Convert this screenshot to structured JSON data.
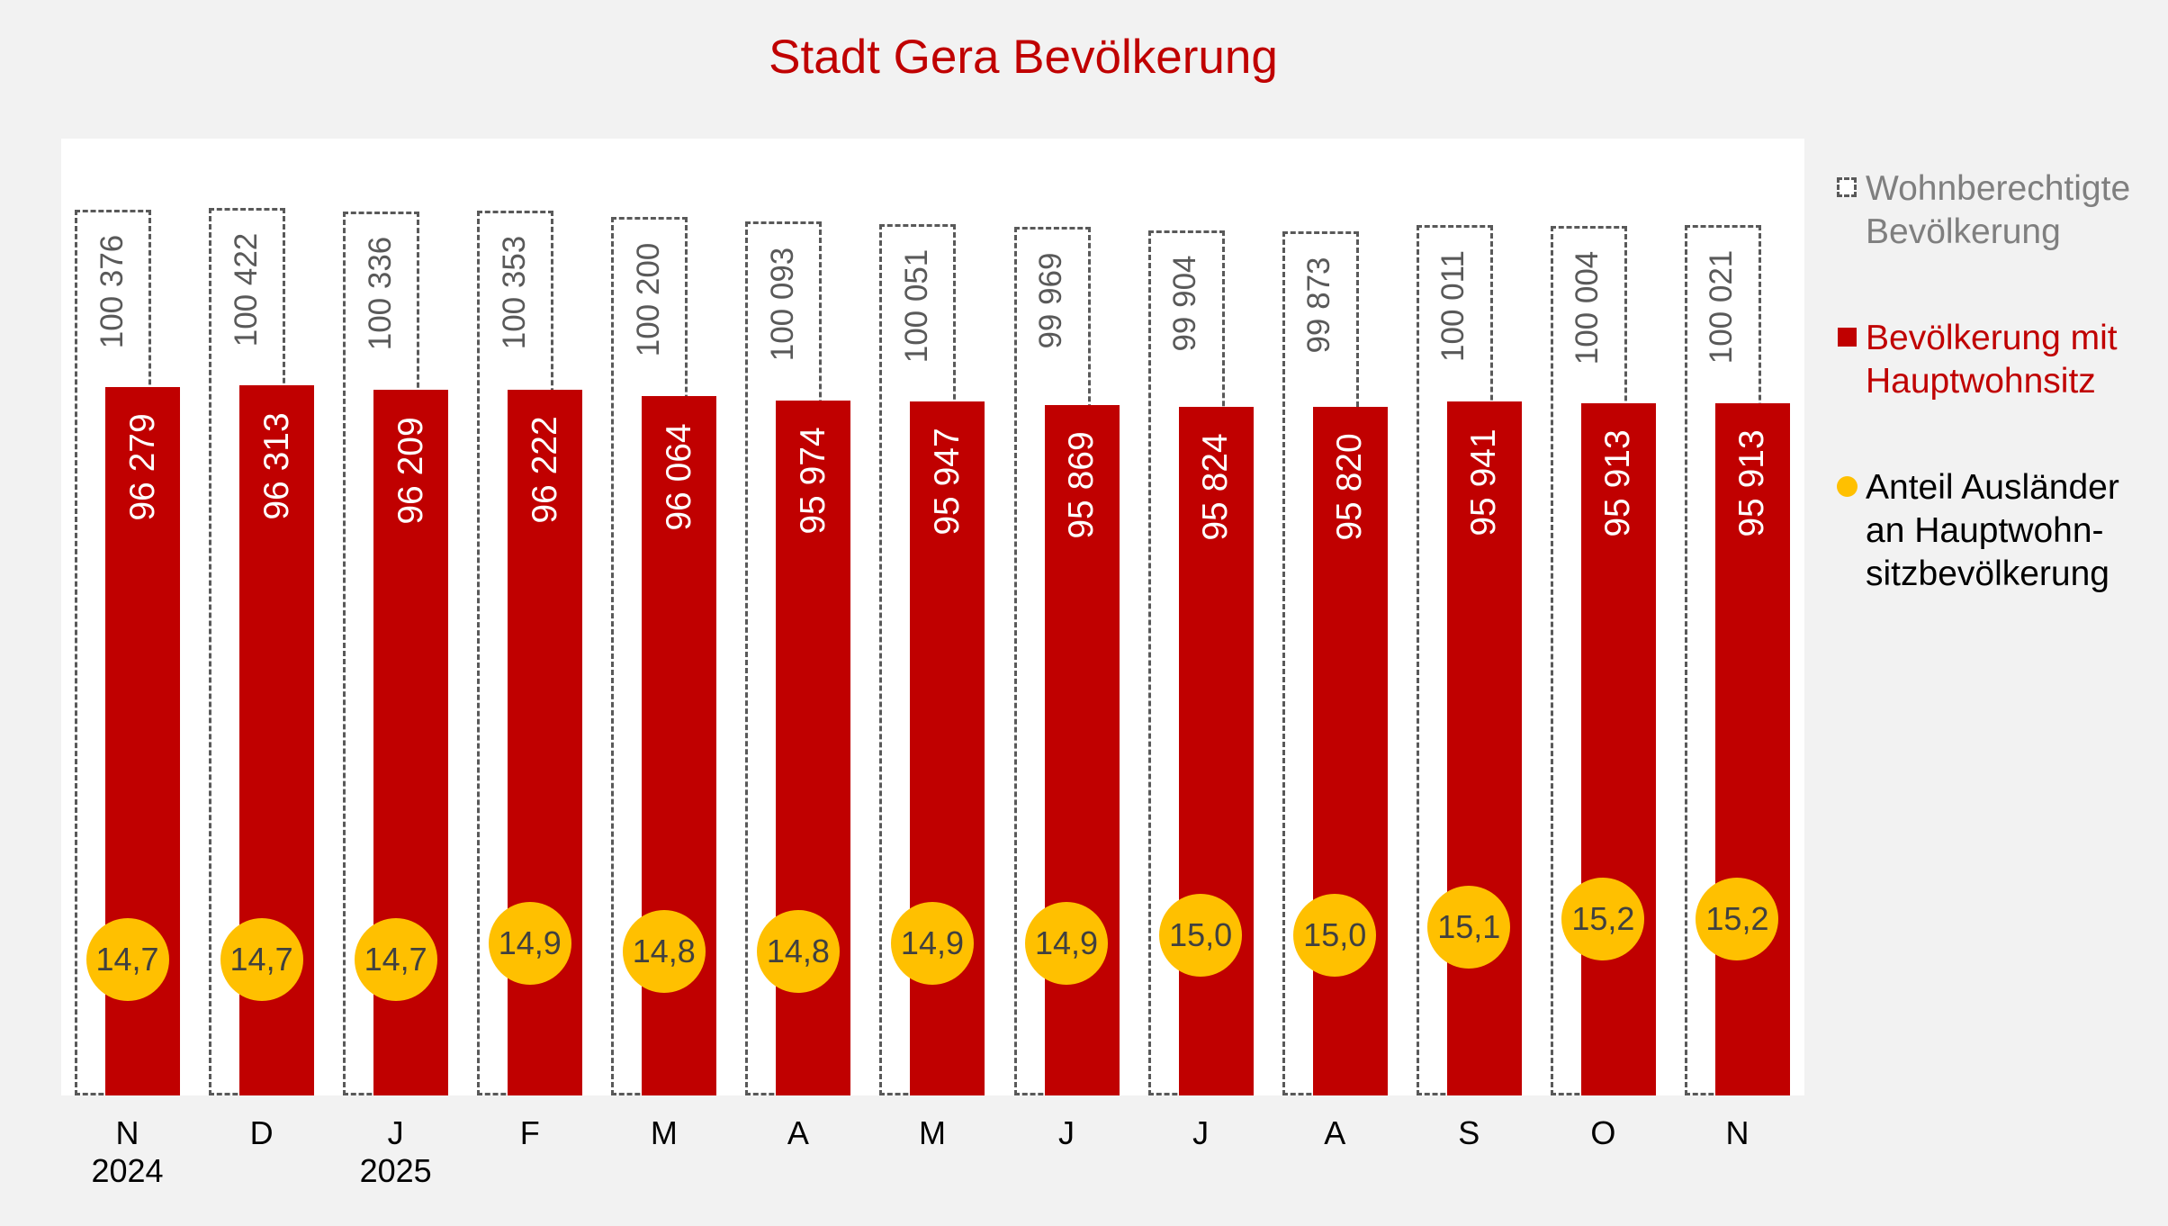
{
  "title": "Stadt Gera Bevölkerung",
  "legend": {
    "items": [
      {
        "key": "wohnberechtigt",
        "lines": [
          "Wohnberechtigte",
          "Bevölkerung"
        ],
        "color": "#7f7f7f",
        "icon": "dashed-square"
      },
      {
        "key": "hauptwohnsitz",
        "lines": [
          "Bevölkerung mit",
          "Hauptwohnsitz"
        ],
        "color": "#c00000",
        "icon": "filled-square"
      },
      {
        "key": "auslaender",
        "lines": [
          "Anteil Ausländer",
          "an Hauptwohn-",
          "sitzbevölkerung"
        ],
        "color": "#000000",
        "icon": "filled-circle"
      }
    ]
  },
  "colors": {
    "background": "#f2f2f2",
    "plot_background": "#ffffff",
    "title": "#c00000",
    "hauptwohnsitz_bar": "#c00000",
    "wohnberechtigt_border": "#595959",
    "auslaender_dot": "#ffc000",
    "dot_text": "#404040"
  },
  "chart_data": {
    "type": "bar",
    "title": "Stadt Gera Bevölkerung",
    "xlabel": "",
    "ylabel": "",
    "grid": false,
    "legend_position": "right",
    "categories": [
      "N 2024",
      "D",
      "J 2025",
      "F",
      "M",
      "A",
      "M",
      "J",
      "J",
      "A",
      "S",
      "O",
      "N"
    ],
    "category_labels": [
      [
        "N",
        "2024"
      ],
      [
        "D"
      ],
      [
        "J",
        "2025"
      ],
      [
        "F"
      ],
      [
        "M"
      ],
      [
        "A"
      ],
      [
        "M"
      ],
      [
        "J"
      ],
      [
        "J"
      ],
      [
        "A"
      ],
      [
        "S"
      ],
      [
        "O"
      ],
      [
        "N"
      ]
    ],
    "series": [
      {
        "name": "Wohnberechtigte Bevölkerung",
        "style": "dashed-outline-bar",
        "values": [
          100376,
          100422,
          100336,
          100353,
          100200,
          100093,
          100051,
          99969,
          99904,
          99873,
          100011,
          100004,
          100021
        ],
        "labels": [
          "100 376",
          "100 422",
          "100 336",
          "100 353",
          "100 200",
          "100 093",
          "100 051",
          "99 969",
          "99 904",
          "99 873",
          "100 011",
          "100 004",
          "100 021"
        ]
      },
      {
        "name": "Bevölkerung mit Hauptwohnsitz",
        "style": "filled-bar",
        "values": [
          96279,
          96313,
          96209,
          96222,
          96064,
          95974,
          95947,
          95869,
          95824,
          95820,
          95941,
          95913,
          95913
        ],
        "labels": [
          "96 279",
          "96 313",
          "96 209",
          "96 222",
          "96 064",
          "95 974",
          "95 947",
          "95 869",
          "95 824",
          "95 820",
          "95 941",
          "95 913",
          "95 913"
        ]
      },
      {
        "name": "Anteil Ausländer an Hauptwohnsitzbevölkerung",
        "style": "circle-marker",
        "unit": "%",
        "values": [
          14.7,
          14.7,
          14.7,
          14.9,
          14.8,
          14.8,
          14.9,
          14.9,
          15.0,
          15.0,
          15.1,
          15.2,
          15.2
        ],
        "labels": [
          "14,7",
          "14,7",
          "14,7",
          "14,9",
          "14,8",
          "14,8",
          "14,9",
          "14,9",
          "15,0",
          "15,0",
          "15,1",
          "15,2",
          "15,2"
        ]
      }
    ],
    "ylim_bars": [
      79912,
      101500
    ],
    "ylim_dots_note": "secondary axis, hidden"
  }
}
